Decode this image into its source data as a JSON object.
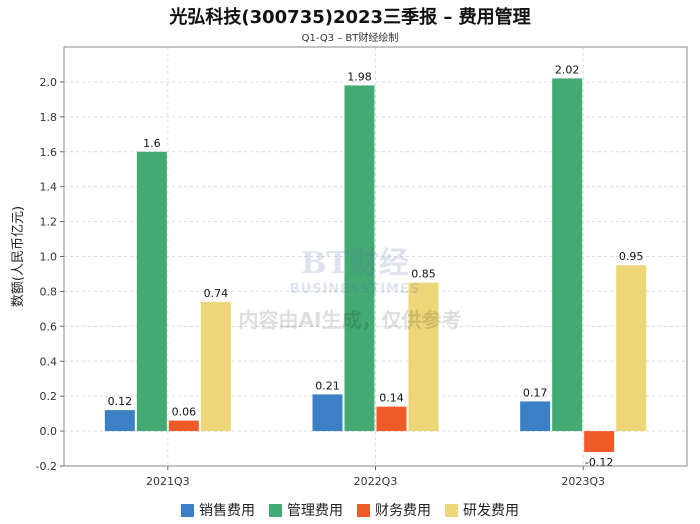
{
  "chart_data": {
    "type": "bar",
    "title": "光弘科技(300735)2023三季报 – 费用管理",
    "subtitle": "Q1-Q3 – BT财经绘制",
    "ylabel": "数额(人民币亿元)",
    "xlabel": "",
    "categories": [
      "2021Q3",
      "2022Q3",
      "2023Q3"
    ],
    "ylim": [
      -0.2,
      2.2
    ],
    "yticks": [
      "-0.2",
      "0.0",
      "0.2",
      "0.4",
      "0.6",
      "0.8",
      "1.0",
      "1.2",
      "1.4",
      "1.6",
      "1.8",
      "2.0"
    ],
    "grid": true,
    "legend_position": "bottom",
    "series": [
      {
        "name": "销售费用",
        "color": "#3b7fc4",
        "values": [
          0.12,
          0.21,
          0.17
        ],
        "labels": [
          "0.12",
          "0.21",
          "0.17"
        ]
      },
      {
        "name": "管理费用",
        "color": "#43aa73",
        "values": [
          1.6,
          1.98,
          2.02
        ],
        "labels": [
          "1.6",
          "1.98",
          "2.02"
        ]
      },
      {
        "name": "财务费用",
        "color": "#f05a28",
        "values": [
          0.06,
          0.14,
          -0.12
        ],
        "labels": [
          "0.06",
          "0.14",
          "-0.12"
        ]
      },
      {
        "name": "研发费用",
        "color": "#edd677",
        "values": [
          0.74,
          0.85,
          0.95
        ],
        "labels": [
          "0.74",
          "0.85",
          "0.95"
        ]
      }
    ]
  },
  "watermark": {
    "logo_text": "BT财经",
    "sub_text": "BUSINESSTIMES",
    "disclaimer": "内容由AI生成，仅供参考"
  }
}
